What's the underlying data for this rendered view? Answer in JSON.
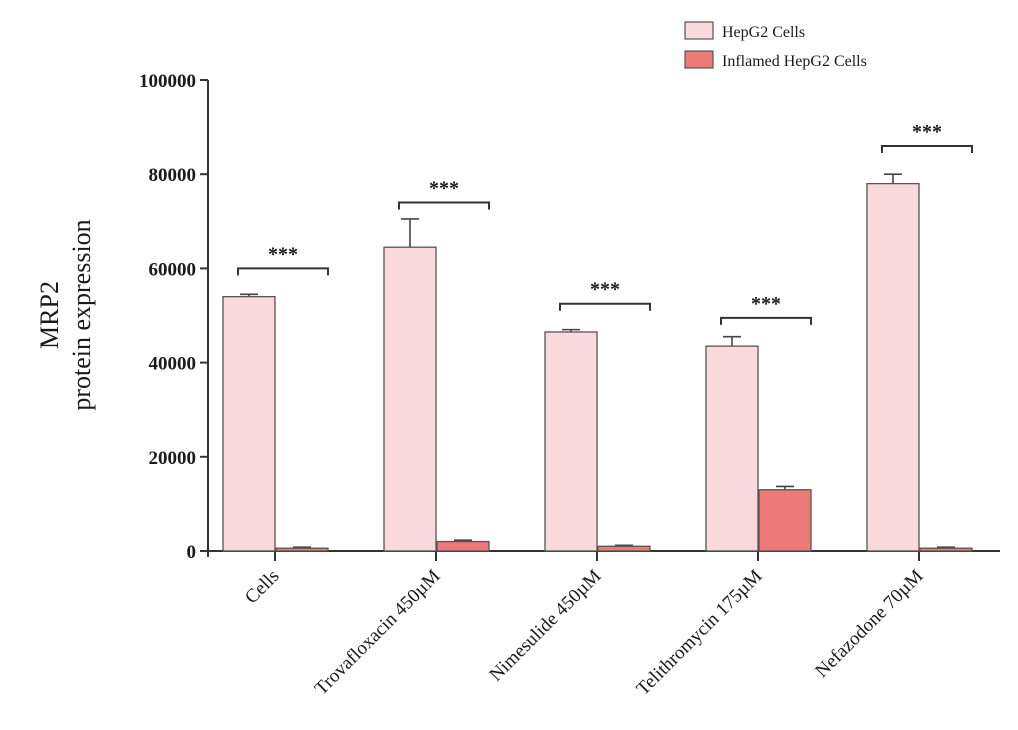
{
  "chart_data": {
    "type": "bar",
    "title": "",
    "ylabel": [
      "MRP2",
      "protein expression"
    ],
    "xlabel": "",
    "ylim": [
      0,
      100000
    ],
    "yticks": [
      0,
      20000,
      40000,
      60000,
      80000,
      100000
    ],
    "ytick_labels": [
      "0",
      "20000",
      "40000",
      "60000",
      "80000",
      "100000"
    ],
    "categories": [
      "Cells",
      "Trovafloxacin 450µM",
      "Nimesulide 450µM",
      "Telithromycin 175µM",
      "Nefazodone 70µM"
    ],
    "series": [
      {
        "name": "HepG2 Cells",
        "color": "#f9d9dc",
        "values": [
          54000,
          64500,
          46500,
          43500,
          78000
        ],
        "errors": [
          500,
          6000,
          500,
          2000,
          2000
        ]
      },
      {
        "name": "Inflamed HepG2 Cells",
        "color": "#ec7a78",
        "values": [
          600,
          2000,
          1000,
          13000,
          600
        ],
        "errors": [
          200,
          300,
          200,
          700,
          200
        ]
      }
    ],
    "significance": [
      {
        "label": "***",
        "bracket_value": 60000
      },
      {
        "label": "***",
        "bracket_value": 74000
      },
      {
        "label": "***",
        "bracket_value": 52500
      },
      {
        "label": "***",
        "bracket_value": 49500
      },
      {
        "label": "***",
        "bracket_value": 86000
      }
    ],
    "legend_position": "top-right",
    "grid": false
  }
}
